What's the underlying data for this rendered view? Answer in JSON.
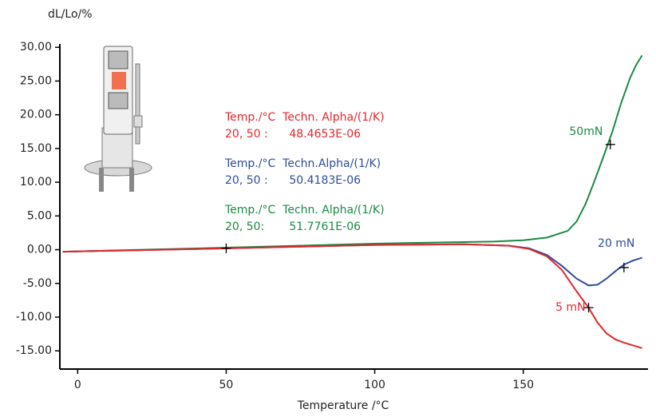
{
  "chart_data": {
    "type": "line",
    "ylabel": "dL/Lo/%",
    "xlabel": "Temperature /°C",
    "xlim": [
      -6,
      192
    ],
    "ylim": [
      -17.7,
      30.5
    ],
    "xticks": [
      0,
      50,
      100,
      150
    ],
    "yticks": [
      {
        "value": 30,
        "label": "30.00"
      },
      {
        "value": 25,
        "label": "25.00"
      },
      {
        "value": 20,
        "label": "20.00"
      },
      {
        "value": 15,
        "label": "15.00"
      },
      {
        "value": 10,
        "label": "10.00"
      },
      {
        "value": 5,
        "label": "5.00"
      },
      {
        "value": 0,
        "label": "0.00"
      },
      {
        "value": -5,
        "label": "-5.00"
      },
      {
        "value": -10,
        "label": "-10.00"
      },
      {
        "value": -15,
        "label": "-15.00"
      }
    ],
    "series": [
      {
        "name": "50mN",
        "color": "#1a8a45",
        "x": [
          -5,
          50,
          100,
          140,
          150,
          158,
          165,
          168,
          171,
          174,
          177,
          180,
          183,
          186,
          188,
          190
        ],
        "values": [
          -0.3,
          0.3,
          0.9,
          1.2,
          1.4,
          1.8,
          2.8,
          4.2,
          6.8,
          10.2,
          13.8,
          17.5,
          21.8,
          25.5,
          27.4,
          28.8
        ]
      },
      {
        "name": "20 mN",
        "color": "#2e4c9b",
        "x": [
          -5,
          50,
          100,
          130,
          145,
          152,
          158,
          163,
          168,
          172,
          175,
          178,
          181,
          184,
          187,
          190
        ],
        "values": [
          -0.3,
          0.2,
          0.7,
          0.8,
          0.6,
          0.2,
          -0.8,
          -2.4,
          -4.3,
          -5.3,
          -5.2,
          -4.3,
          -3.2,
          -2.2,
          -1.6,
          -1.2
        ]
      },
      {
        "name": "5 mN",
        "color": "#e3262b",
        "x": [
          -5,
          50,
          100,
          130,
          145,
          152,
          158,
          163,
          168,
          172,
          175,
          178,
          181,
          184,
          187,
          190
        ],
        "values": [
          -0.3,
          0.2,
          0.7,
          0.8,
          0.6,
          0.1,
          -1.0,
          -3.0,
          -6.2,
          -8.6,
          -10.8,
          -12.4,
          -13.3,
          -13.8,
          -14.2,
          -14.6
        ]
      }
    ],
    "markers": [
      {
        "x": 50,
        "y": 0.2
      },
      {
        "x": 179.3,
        "y": 15.6
      },
      {
        "x": 183.9,
        "y": -2.65
      },
      {
        "x": 172,
        "y": -8.6
      }
    ],
    "annotations": [
      {
        "color": "#e3262b",
        "lines": [
          "Temp./°C  Techn. Alpha/(1/K)",
          "20, 50 :      48.4653E-06"
        ]
      },
      {
        "color": "#2e4c9b",
        "lines": [
          "Temp./°C  Techn.Alpha/(1/K)",
          "20, 50 :      50.4183E-06"
        ]
      },
      {
        "color": "#1a8a45",
        "lines": [
          "Temp./°C  Techn. Alpha/(1/K)",
          "20, 50:       51.7761E-06"
        ]
      }
    ]
  }
}
